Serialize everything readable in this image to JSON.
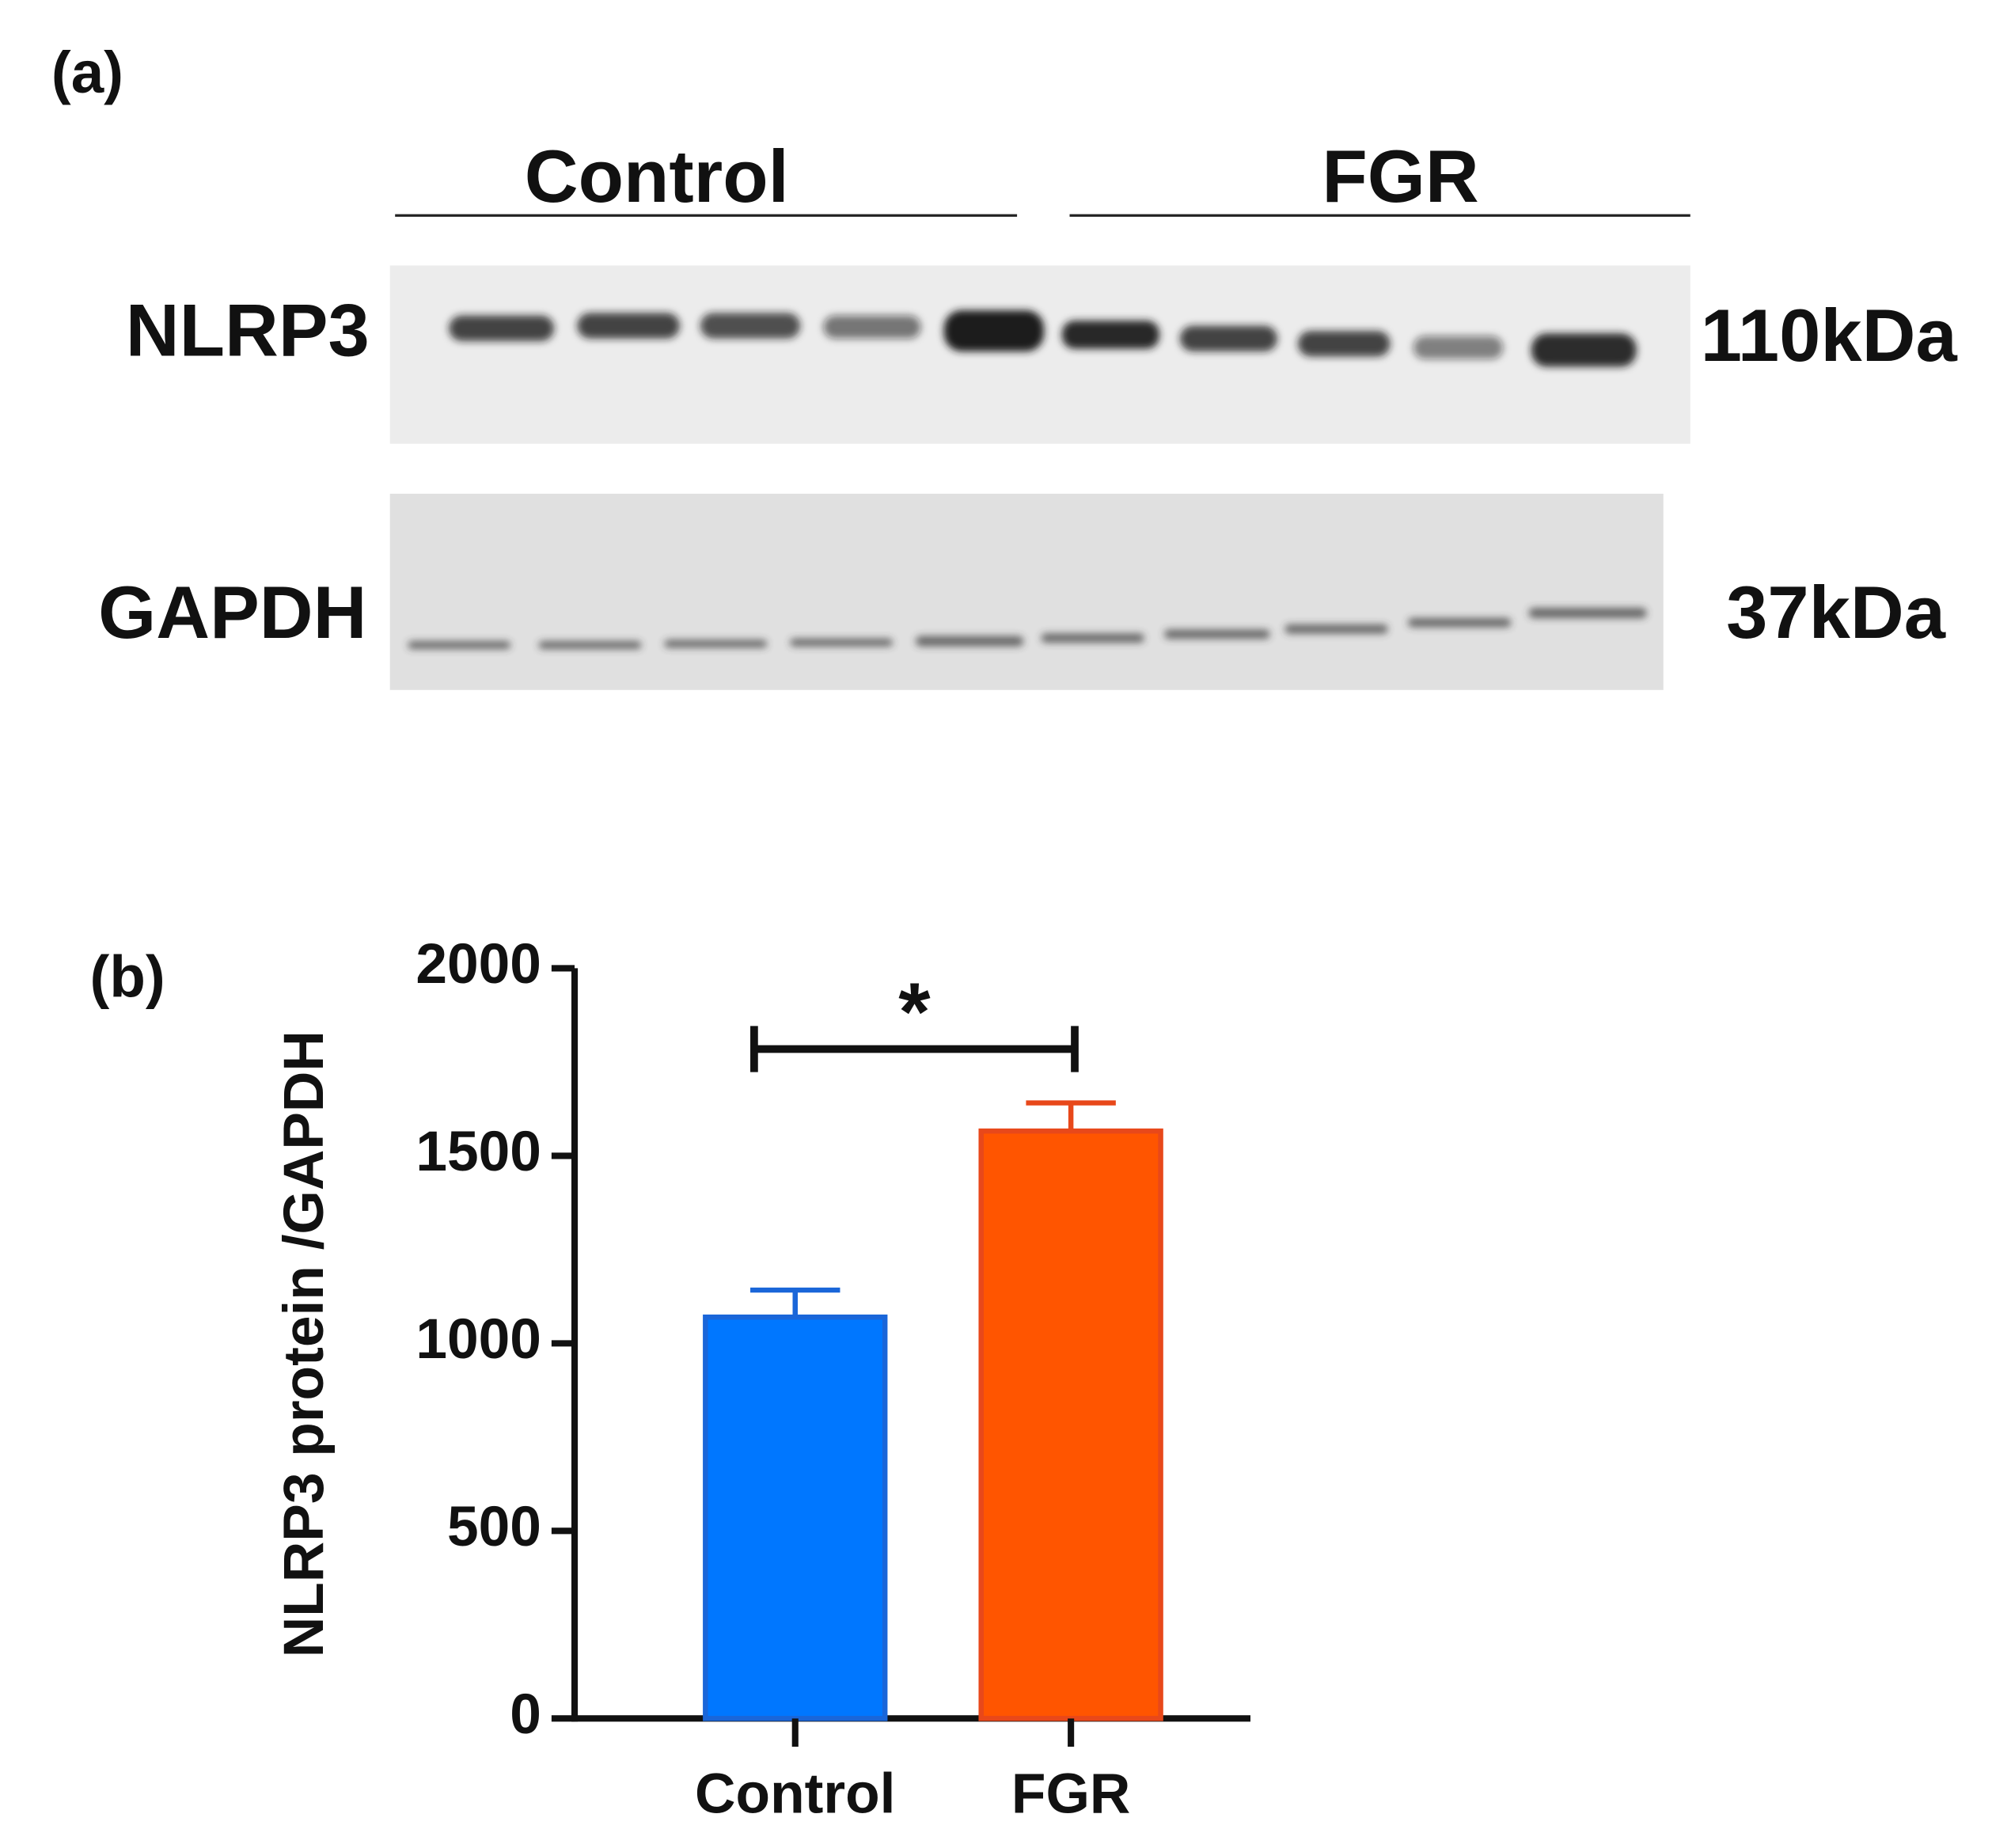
{
  "panel_a": {
    "label": "(a)",
    "groups": [
      "Control",
      "FGR"
    ],
    "rows": [
      {
        "protein": "NLRP3",
        "size": "110kDa"
      },
      {
        "protein": "GAPDH",
        "size": "37kDa"
      }
    ]
  },
  "chart_data": {
    "type": "bar",
    "panel_label": "(b)",
    "ylabel": "NLRP3 protein /GAPDH",
    "categories": [
      "Control",
      "FGR"
    ],
    "values": [
      1070,
      1566
    ],
    "errors": [
      72,
      75
    ],
    "colors": [
      "#0077ff",
      "#ff5500"
    ],
    "edge_colors": [
      "#1a66d9",
      "#e8481a"
    ],
    "ylim": [
      0,
      2000
    ],
    "yticks": [
      0,
      500,
      1000,
      1500,
      2000
    ],
    "significance": {
      "label": "*",
      "between": [
        0,
        1
      ]
    }
  }
}
